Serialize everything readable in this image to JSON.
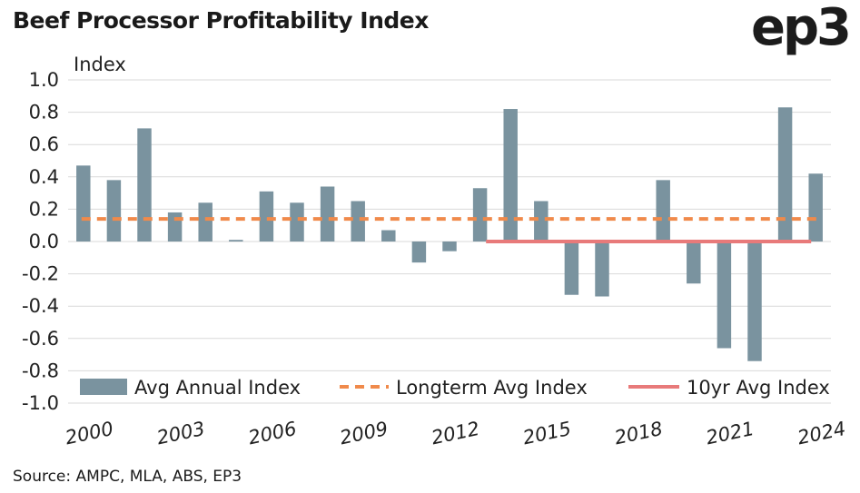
{
  "title": "Beef Processor Profitability Index",
  "logo": "ep3",
  "source": "Source: AMPC, MLA, ABS, EP3",
  "chart_data": {
    "type": "bar",
    "ylabel": "Index",
    "ylim": [
      -1.0,
      1.0
    ],
    "yticks": [
      "1.0",
      "0.8",
      "0.6",
      "0.4",
      "0.2",
      "0.0",
      "-0.2",
      "-0.4",
      "-0.6",
      "-0.8",
      "-1.0"
    ],
    "ytick_values": [
      1.0,
      0.8,
      0.6,
      0.4,
      0.2,
      0.0,
      -0.2,
      -0.4,
      -0.6,
      -0.8,
      -1.0
    ],
    "xtick_labels": [
      "2000",
      "2003",
      "2006",
      "2009",
      "2012",
      "2015",
      "2018",
      "2021",
      "2024"
    ],
    "categories": [
      "2000",
      "2001",
      "2002",
      "2003",
      "2004",
      "2005",
      "2006",
      "2007",
      "2008",
      "2009",
      "2010",
      "2011",
      "2012",
      "2013",
      "2014",
      "2015",
      "2016",
      "2017",
      "2018",
      "2019",
      "2020",
      "2021",
      "2022",
      "2023",
      "2024"
    ],
    "series": [
      {
        "name": "Avg Annual Index",
        "type": "bar",
        "color": "#7a939f",
        "values": [
          0.47,
          0.38,
          0.7,
          0.18,
          0.24,
          0.01,
          0.31,
          0.24,
          0.34,
          0.25,
          0.07,
          -0.13,
          -0.06,
          0.33,
          0.82,
          0.25,
          -0.33,
          -0.34,
          null,
          0.38,
          -0.26,
          -0.66,
          -0.74,
          0.83,
          0.42
        ]
      },
      {
        "name": "Longterm Avg Index",
        "type": "dashed-line",
        "color": "#f08a4b",
        "value": 0.14,
        "x_range": [
          "2000",
          "2024"
        ]
      },
      {
        "name": "10yr Avg Index",
        "type": "line",
        "color": "#e87a7a",
        "value": 0.0,
        "x_range": [
          "2014",
          "2024"
        ]
      }
    ],
    "grid": true,
    "legend": "bottom"
  }
}
